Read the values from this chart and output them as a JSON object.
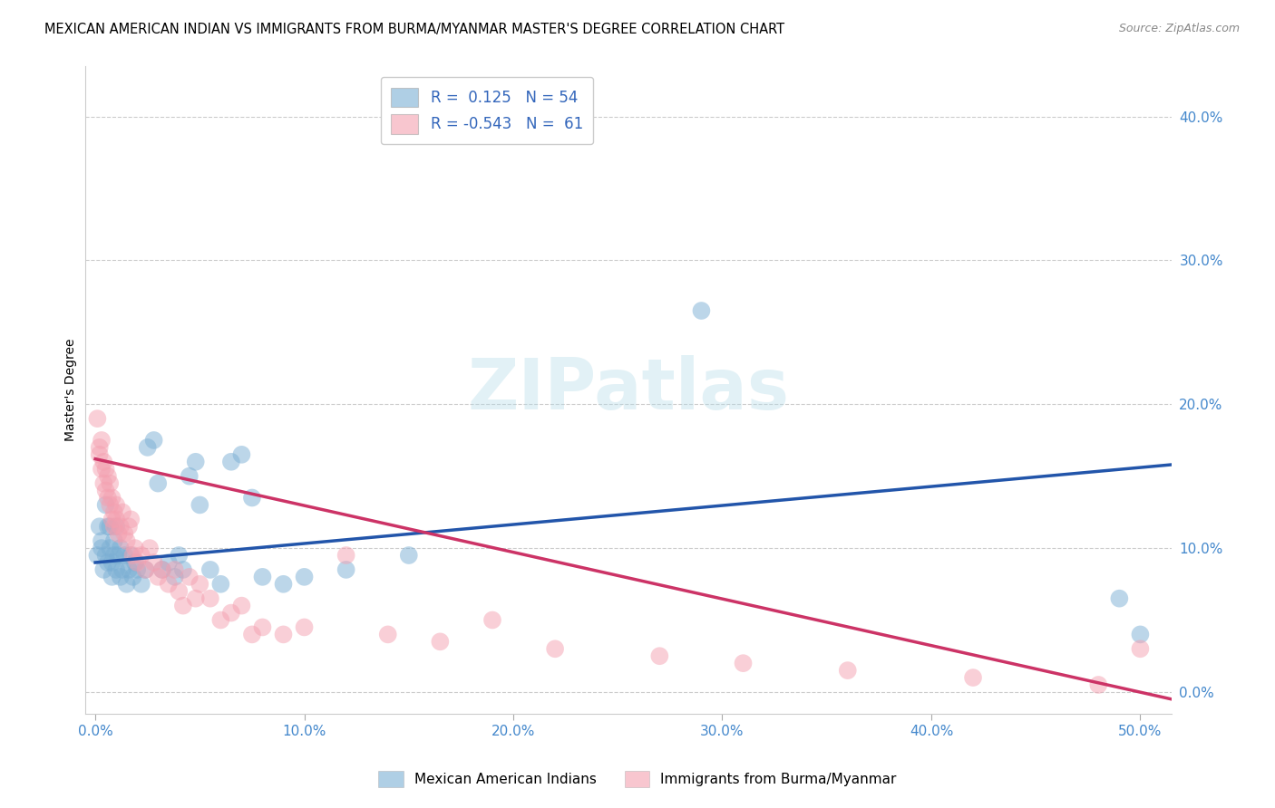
{
  "title": "MEXICAN AMERICAN INDIAN VS IMMIGRANTS FROM BURMA/MYANMAR MASTER'S DEGREE CORRELATION CHART",
  "source": "Source: ZipAtlas.com",
  "ylabel": "Master's Degree",
  "xlabel_ticks": [
    "0.0%",
    "10.0%",
    "20.0%",
    "30.0%",
    "40.0%",
    "50.0%"
  ],
  "xlabel_tick_vals": [
    0.0,
    0.1,
    0.2,
    0.3,
    0.4,
    0.5
  ],
  "ylabel_ticks": [
    "0.0%",
    "10.0%",
    "20.0%",
    "30.0%",
    "40.0%"
  ],
  "ylabel_tick_vals": [
    0.0,
    0.1,
    0.2,
    0.3,
    0.4
  ],
  "xlim": [
    -0.005,
    0.515
  ],
  "ylim": [
    -0.015,
    0.435
  ],
  "legend1_label": "Mexican American Indians",
  "legend2_label": "Immigrants from Burma/Myanmar",
  "r1": 0.125,
  "n1": 54,
  "r2": -0.543,
  "n2": 61,
  "blue_color": "#7BAFD4",
  "pink_color": "#F4A0B0",
  "blue_line_color": "#2255AA",
  "pink_line_color": "#CC3366",
  "watermark": "ZIPatlas",
  "title_fontsize": 11,
  "axis_label_fontsize": 10,
  "tick_fontsize": 11,
  "blue_x": [
    0.001,
    0.002,
    0.003,
    0.003,
    0.004,
    0.005,
    0.005,
    0.006,
    0.006,
    0.007,
    0.007,
    0.008,
    0.008,
    0.009,
    0.009,
    0.01,
    0.01,
    0.011,
    0.012,
    0.012,
    0.013,
    0.014,
    0.015,
    0.016,
    0.017,
    0.018,
    0.019,
    0.02,
    0.022,
    0.024,
    0.025,
    0.028,
    0.03,
    0.032,
    0.035,
    0.038,
    0.04,
    0.042,
    0.045,
    0.048,
    0.05,
    0.055,
    0.06,
    0.065,
    0.07,
    0.075,
    0.08,
    0.09,
    0.1,
    0.12,
    0.15,
    0.29,
    0.49,
    0.5
  ],
  "blue_y": [
    0.095,
    0.115,
    0.1,
    0.105,
    0.085,
    0.13,
    0.095,
    0.115,
    0.09,
    0.1,
    0.115,
    0.09,
    0.08,
    0.105,
    0.095,
    0.115,
    0.085,
    0.095,
    0.1,
    0.08,
    0.085,
    0.095,
    0.075,
    0.085,
    0.095,
    0.08,
    0.09,
    0.085,
    0.075,
    0.085,
    0.17,
    0.175,
    0.145,
    0.085,
    0.09,
    0.08,
    0.095,
    0.085,
    0.15,
    0.16,
    0.13,
    0.085,
    0.075,
    0.16,
    0.165,
    0.135,
    0.08,
    0.075,
    0.08,
    0.085,
    0.095,
    0.265,
    0.065,
    0.04
  ],
  "pink_x": [
    0.001,
    0.002,
    0.002,
    0.003,
    0.003,
    0.004,
    0.004,
    0.005,
    0.005,
    0.006,
    0.006,
    0.007,
    0.007,
    0.008,
    0.008,
    0.009,
    0.009,
    0.01,
    0.01,
    0.011,
    0.012,
    0.013,
    0.014,
    0.015,
    0.016,
    0.017,
    0.018,
    0.019,
    0.02,
    0.022,
    0.024,
    0.026,
    0.028,
    0.03,
    0.032,
    0.035,
    0.038,
    0.04,
    0.042,
    0.045,
    0.048,
    0.05,
    0.055,
    0.06,
    0.065,
    0.07,
    0.075,
    0.08,
    0.09,
    0.1,
    0.12,
    0.14,
    0.165,
    0.19,
    0.22,
    0.27,
    0.31,
    0.36,
    0.42,
    0.48,
    0.5
  ],
  "pink_y": [
    0.19,
    0.165,
    0.17,
    0.155,
    0.175,
    0.145,
    0.16,
    0.155,
    0.14,
    0.135,
    0.15,
    0.145,
    0.13,
    0.12,
    0.135,
    0.125,
    0.115,
    0.13,
    0.12,
    0.11,
    0.115,
    0.125,
    0.11,
    0.105,
    0.115,
    0.12,
    0.095,
    0.1,
    0.09,
    0.095,
    0.085,
    0.1,
    0.09,
    0.08,
    0.085,
    0.075,
    0.085,
    0.07,
    0.06,
    0.08,
    0.065,
    0.075,
    0.065,
    0.05,
    0.055,
    0.06,
    0.04,
    0.045,
    0.04,
    0.045,
    0.095,
    0.04,
    0.035,
    0.05,
    0.03,
    0.025,
    0.02,
    0.015,
    0.01,
    0.005,
    0.03
  ],
  "blue_line_x0": 0.0,
  "blue_line_y0": 0.09,
  "blue_line_x1": 0.515,
  "blue_line_y1": 0.158,
  "pink_line_x0": 0.0,
  "pink_line_y0": 0.162,
  "pink_line_x1": 0.515,
  "pink_line_y1": -0.005
}
